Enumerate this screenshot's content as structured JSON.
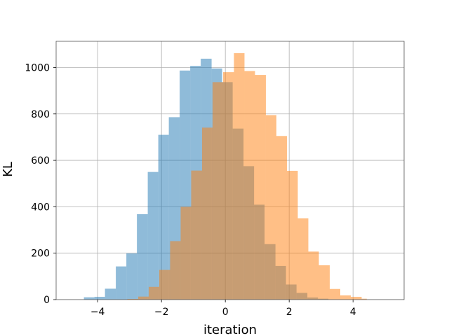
{
  "chart_data": {
    "type": "bar",
    "title": "",
    "xlabel": "iteration",
    "ylabel": "KL",
    "xlim": [
      -5.3,
      5.6
    ],
    "ylim": [
      0,
      1113
    ],
    "grid": true,
    "legend": "none",
    "x_ticks": [
      {
        "value": -4,
        "label": "−4"
      },
      {
        "value": -2,
        "label": "−2"
      },
      {
        "value": 0,
        "label": "0"
      },
      {
        "value": 2,
        "label": "2"
      },
      {
        "value": 4,
        "label": "4"
      }
    ],
    "y_ticks": [
      {
        "value": 0,
        "label": "0"
      },
      {
        "value": 200,
        "label": "200"
      },
      {
        "value": 400,
        "label": "400"
      },
      {
        "value": 600,
        "label": "600"
      },
      {
        "value": 800,
        "label": "800"
      },
      {
        "value": 1000,
        "label": "1000"
      }
    ],
    "series": [
      {
        "color": "#1f77b4",
        "opacity": 0.5,
        "bins": [
          {
            "x0": -4.43,
            "x1": -4.1,
            "count": 10
          },
          {
            "x0": -4.1,
            "x1": -3.77,
            "count": 12
          },
          {
            "x0": -3.77,
            "x1": -3.43,
            "count": 47
          },
          {
            "x0": -3.43,
            "x1": -3.1,
            "count": 143
          },
          {
            "x0": -3.1,
            "x1": -2.77,
            "count": 199
          },
          {
            "x0": -2.77,
            "x1": -2.43,
            "count": 368
          },
          {
            "x0": -2.43,
            "x1": -2.1,
            "count": 550
          },
          {
            "x0": -2.1,
            "x1": -1.77,
            "count": 710
          },
          {
            "x0": -1.77,
            "x1": -1.43,
            "count": 786
          },
          {
            "x0": -1.43,
            "x1": -1.1,
            "count": 987
          },
          {
            "x0": -1.1,
            "x1": -0.77,
            "count": 1007
          },
          {
            "x0": -0.77,
            "x1": -0.43,
            "count": 1038
          },
          {
            "x0": -0.43,
            "x1": -0.1,
            "count": 996
          },
          {
            "x0": -0.1,
            "x1": 0.23,
            "count": 937
          },
          {
            "x0": 0.23,
            "x1": 0.57,
            "count": 737
          },
          {
            "x0": 0.57,
            "x1": 0.9,
            "count": 575
          },
          {
            "x0": 0.9,
            "x1": 1.23,
            "count": 409
          },
          {
            "x0": 1.23,
            "x1": 1.57,
            "count": 239
          },
          {
            "x0": 1.57,
            "x1": 1.9,
            "count": 145
          },
          {
            "x0": 1.9,
            "x1": 2.23,
            "count": 65
          },
          {
            "x0": 2.23,
            "x1": 2.57,
            "count": 29
          },
          {
            "x0": 2.57,
            "x1": 2.9,
            "count": 9
          },
          {
            "x0": 2.9,
            "x1": 3.23,
            "count": 4
          }
        ]
      },
      {
        "color": "#ff7f0e",
        "opacity": 0.5,
        "bins": [
          {
            "x0": -3.07,
            "x1": -2.73,
            "count": 3
          },
          {
            "x0": -2.73,
            "x1": -2.4,
            "count": 13
          },
          {
            "x0": -2.4,
            "x1": -2.07,
            "count": 55
          },
          {
            "x0": -2.07,
            "x1": -1.73,
            "count": 128
          },
          {
            "x0": -1.73,
            "x1": -1.4,
            "count": 252
          },
          {
            "x0": -1.4,
            "x1": -1.07,
            "count": 400
          },
          {
            "x0": -1.07,
            "x1": -0.73,
            "count": 556
          },
          {
            "x0": -0.73,
            "x1": -0.4,
            "count": 741
          },
          {
            "x0": -0.4,
            "x1": -0.07,
            "count": 937
          },
          {
            "x0": -0.07,
            "x1": 0.27,
            "count": 980
          },
          {
            "x0": 0.27,
            "x1": 0.6,
            "count": 1062
          },
          {
            "x0": 0.6,
            "x1": 0.93,
            "count": 985
          },
          {
            "x0": 0.93,
            "x1": 1.27,
            "count": 968
          },
          {
            "x0": 1.27,
            "x1": 1.6,
            "count": 795
          },
          {
            "x0": 1.6,
            "x1": 1.93,
            "count": 705
          },
          {
            "x0": 1.93,
            "x1": 2.27,
            "count": 555
          },
          {
            "x0": 2.27,
            "x1": 2.6,
            "count": 350
          },
          {
            "x0": 2.6,
            "x1": 2.93,
            "count": 207
          },
          {
            "x0": 2.93,
            "x1": 3.27,
            "count": 148
          },
          {
            "x0": 3.27,
            "x1": 3.6,
            "count": 46
          },
          {
            "x0": 3.6,
            "x1": 3.93,
            "count": 18
          },
          {
            "x0": 3.93,
            "x1": 4.27,
            "count": 12
          },
          {
            "x0": 4.27,
            "x1": 4.43,
            "count": 4
          }
        ]
      }
    ]
  }
}
